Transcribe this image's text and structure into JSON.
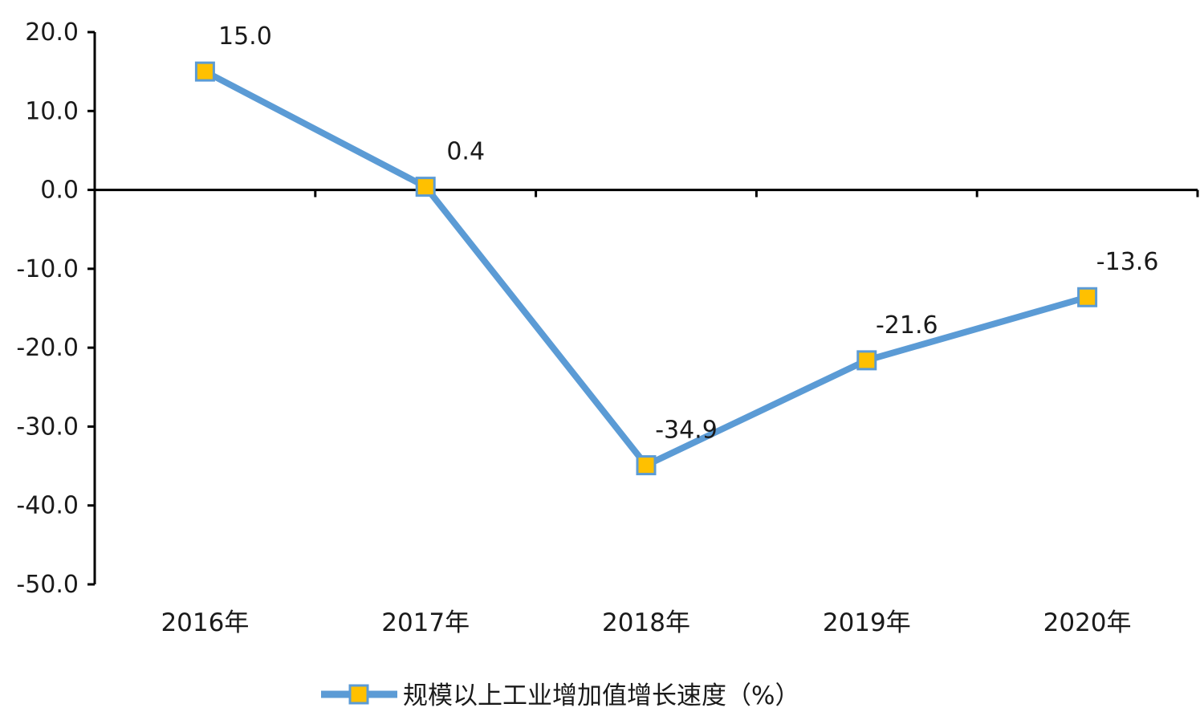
{
  "chart_data": {
    "type": "line",
    "categories": [
      "2016年",
      "2017年",
      "2018年",
      "2019年",
      "2020年"
    ],
    "series": [
      {
        "name": "规模以上工业增加值增长速度（%）",
        "values": [
          15.0,
          0.4,
          -34.9,
          -21.6,
          -13.6
        ],
        "data_labels": [
          "15.0",
          "0.4",
          "-34.9",
          "-21.6",
          "-13.6"
        ],
        "line_color": "#5b9bd5",
        "marker_fill": "#ffc000",
        "marker_stroke": "#5b9bd5"
      }
    ],
    "y_ticks": [
      "20.0",
      "10.0",
      "0.0",
      "-10.0",
      "-20.0",
      "-30.0",
      "-40.0",
      "-50.0"
    ],
    "ylim": [
      -50,
      20
    ],
    "grid": false,
    "legend_position": "bottom"
  }
}
